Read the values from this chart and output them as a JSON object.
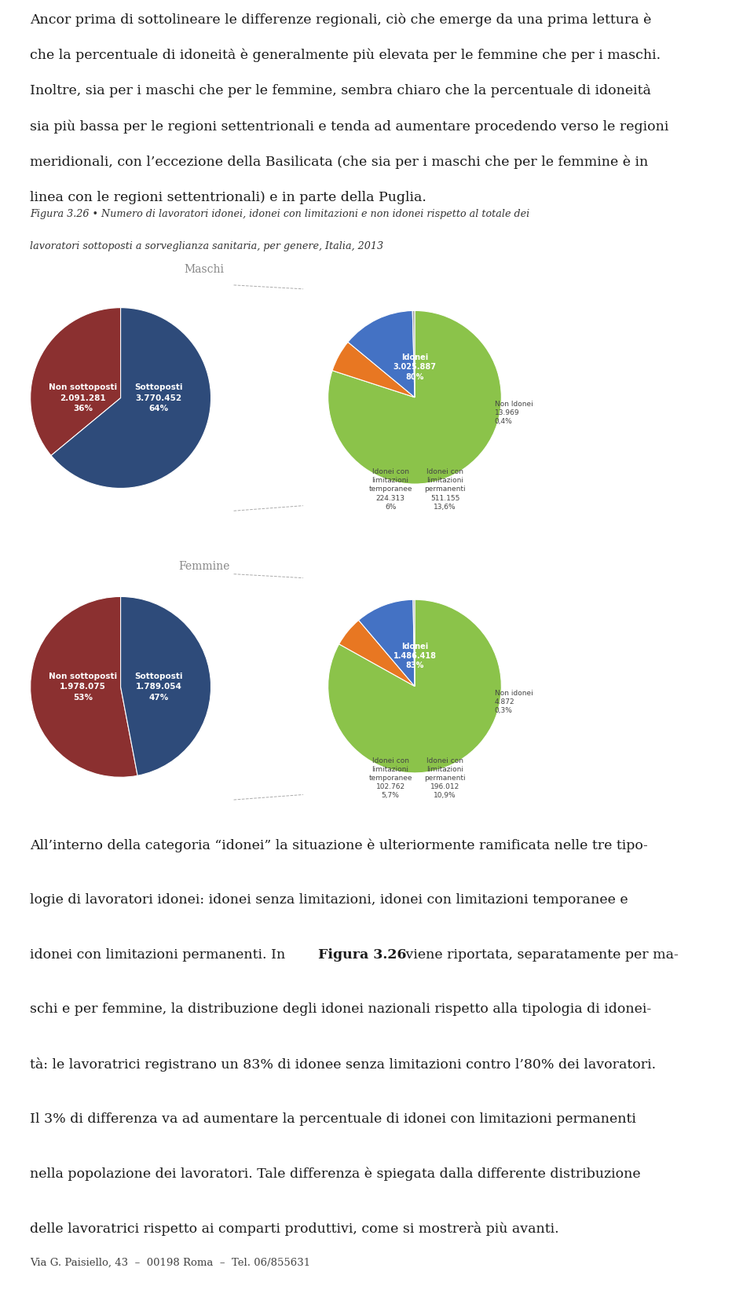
{
  "bg_color": "#FFFFFF",
  "footer": "Via G. Paisiello, 43  –  00198 Roma  –  Tel. 06/855631",
  "caption_line1": "Figura 3.26 • Numero di lavoratori idonei, idonei con limitazioni e non idonei rispetto al totale dei",
  "caption_line2": "lavoratori sottoposti a sorveglianza sanitaria, per genere, Italia, 2013",
  "top_para_lines": [
    "Ancor prima di sottolineare le differenze regionali, ciò che emerge da una prima lettura è",
    "che la percentuale di idoneità è generalmente più elevata per le femmine che per i maschi.",
    "Inoltre, sia per i maschi che per le femmine, sembra chiaro che la percentuale di idoneità",
    "sia più bassa per le regioni settentrionali e tenda ad aumentare procedendo verso le regioni",
    "meridionali, con l’eccezione della Basilicata (che sia per i maschi che per le femmine è in",
    "linea con le regioni settentrionali) e in parte della Puglia."
  ],
  "bottom_para_lines": [
    [
      [
        "All’interno della categoria “idonei” la situazione è ulteriormente ramificata nelle tre tipo-",
        false
      ]
    ],
    [
      [
        "logie di lavoratori idonei: idonei senza limitazioni, idonei con limitazioni temporanee e",
        false
      ]
    ],
    [
      [
        "idonei con limitazioni permanenti. In ",
        false
      ],
      [
        "Figura 3.26",
        true
      ],
      [
        " viene riportata, separatamente per ma-",
        false
      ]
    ],
    [
      [
        "schi e per femmine, la distribuzione degli idonei nazionali rispetto alla tipologia di idonei-",
        false
      ]
    ],
    [
      [
        "tà: le lavoratrici registrano un 83% di idonee senza limitazioni contro l’80% dei lavoratori.",
        false
      ]
    ],
    [
      [
        "Il 3% di differenza va ad aumentare la percentuale di idonei con limitazioni permanenti",
        false
      ]
    ],
    [
      [
        "nella popolazione dei lavoratori. Tale differenza è spiegata dalla differente distribuzione",
        false
      ]
    ],
    [
      [
        "delle lavoratrici rispetto ai comparti produttivi, come si mostrerà più avanti.",
        false
      ]
    ]
  ],
  "maschi": {
    "title": "Maschi",
    "pie1_values": [
      36,
      64
    ],
    "pie1_colors": [
      "#8B3030",
      "#2E4B7A"
    ],
    "pie1_label_left": "Non sottoposti\n2.091.281\n36%",
    "pie1_label_right": "Sottoposti\n3.770.452\n64%",
    "pie2_values": [
      6.0,
      13.6,
      0.4,
      80.0
    ],
    "pie2_colors": [
      "#E87722",
      "#4472C4",
      "#9E9E9E",
      "#8BC34A"
    ],
    "pie2_label_center": "Idonei\n3.025.887\n80%",
    "pie2_label_bottomleft": "Idonei con\nlimitazioni\ntemporanee\n224.313\n6%",
    "pie2_label_bottomright": "Idonei con\nlimitazioni\npermanenti\n511.155\n13,6%",
    "pie2_label_right": "Non Idonei\n13.969\n0,4%"
  },
  "femmine": {
    "title": "Femmine",
    "pie1_values": [
      53,
      47
    ],
    "pie1_colors": [
      "#8B3030",
      "#2E4B7A"
    ],
    "pie1_label_left": "Non sottoposti\n1.978.075\n53%",
    "pie1_label_right": "Sottoposti\n1.789.054\n47%",
    "pie2_values": [
      5.7,
      10.9,
      0.3,
      83.1
    ],
    "pie2_colors": [
      "#E87722",
      "#4472C4",
      "#9E9E9E",
      "#8BC34A"
    ],
    "pie2_label_center": "Idonei\n1.486.418\n83%",
    "pie2_label_bottomleft": "Idonei con\nlimitazioni\ntemporanee\n102.762\n5,7%",
    "pie2_label_bottomright": "Idonei con\nlimitazioni\npermanenti\n196.012\n10,9%",
    "pie2_label_right": "Non idonei\n4.872\n0,3%"
  }
}
